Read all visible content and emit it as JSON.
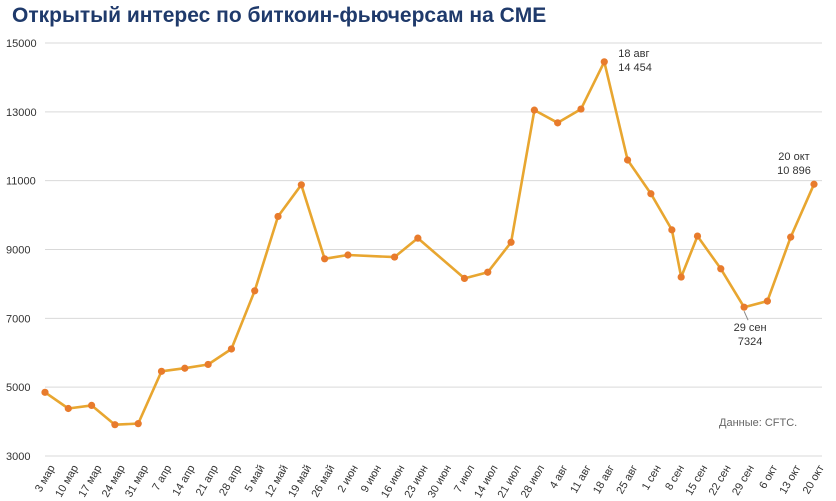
{
  "colors": {
    "line": "#e8a630",
    "marker": "#e87b2c",
    "grid": "#d9d9d9",
    "axis_text": "#333333",
    "title": "#1f3a6b"
  },
  "source_note": "Данные: CFTC.",
  "chart_data": {
    "type": "line",
    "title": "Открытый интерес по биткоин-фьючерсам на CME",
    "xlabel": "",
    "ylabel": "",
    "ylim": [
      3000,
      15000
    ],
    "yticks": [
      3000,
      5000,
      7000,
      9000,
      11000,
      13000,
      15000
    ],
    "grid": true,
    "tick_labels": [
      "3 мар",
      "10 мар",
      "17 мар",
      "24 мар",
      "31 мар",
      "7 апр",
      "14 апр",
      "21 апр",
      "28 апр",
      "5 май",
      "12 май",
      "19 май",
      "26 май",
      "2 июн",
      "9 июн",
      "16 июн",
      "23 июн",
      "30 июн",
      "7 июл",
      "14 июл",
      "21 июл",
      "28 июл",
      "4 авг",
      "11 авг",
      "18 авг",
      "25 авг",
      "1 сен",
      "8 сен",
      "15 сен",
      "22 сен",
      "29 сен",
      "6 окт",
      "13 окт",
      "20 окт"
    ],
    "series": [
      {
        "points": [
          {
            "x": 0,
            "y": 4850
          },
          {
            "x": 1,
            "y": 4380
          },
          {
            "x": 2,
            "y": 4470
          },
          {
            "x": 3,
            "y": 3910
          },
          {
            "x": 4,
            "y": 3940
          },
          {
            "x": 5,
            "y": 5460
          },
          {
            "x": 6,
            "y": 5550
          },
          {
            "x": 7,
            "y": 5660
          },
          {
            "x": 8,
            "y": 6110
          },
          {
            "x": 9,
            "y": 7800
          },
          {
            "x": 10,
            "y": 9960
          },
          {
            "x": 11,
            "y": 10880
          },
          {
            "x": 12,
            "y": 8730
          },
          {
            "x": 13,
            "y": 8840
          },
          {
            "x": 15,
            "y": 8780
          },
          {
            "x": 16,
            "y": 9330
          },
          {
            "x": 18,
            "y": 8160
          },
          {
            "x": 19,
            "y": 8340
          },
          {
            "x": 20,
            "y": 9210
          },
          {
            "x": 21,
            "y": 13050
          },
          {
            "x": 22,
            "y": 12680
          },
          {
            "x": 23,
            "y": 13080
          },
          {
            "x": 24,
            "y": 14454
          },
          {
            "x": 25,
            "y": 11600
          },
          {
            "x": 26,
            "y": 10620
          },
          {
            "x": 26.9,
            "y": 9570
          },
          {
            "x": 27.3,
            "y": 8200
          },
          {
            "x": 28,
            "y": 9390
          },
          {
            "x": 29,
            "y": 8440
          },
          {
            "x": 30,
            "y": 7324
          },
          {
            "x": 31,
            "y": 7500
          },
          {
            "x": 32,
            "y": 9360
          },
          {
            "x": 33,
            "y": 10896
          }
        ]
      }
    ],
    "annotations": [
      {
        "point_index": 22,
        "date": "18 авг",
        "value": "14 454",
        "position": "right"
      },
      {
        "point_index": 29,
        "date": "29 сен",
        "value": "7324",
        "position": "below"
      },
      {
        "point_index": 32,
        "date": "20 окт",
        "value": "10 896",
        "position": "above"
      }
    ]
  }
}
